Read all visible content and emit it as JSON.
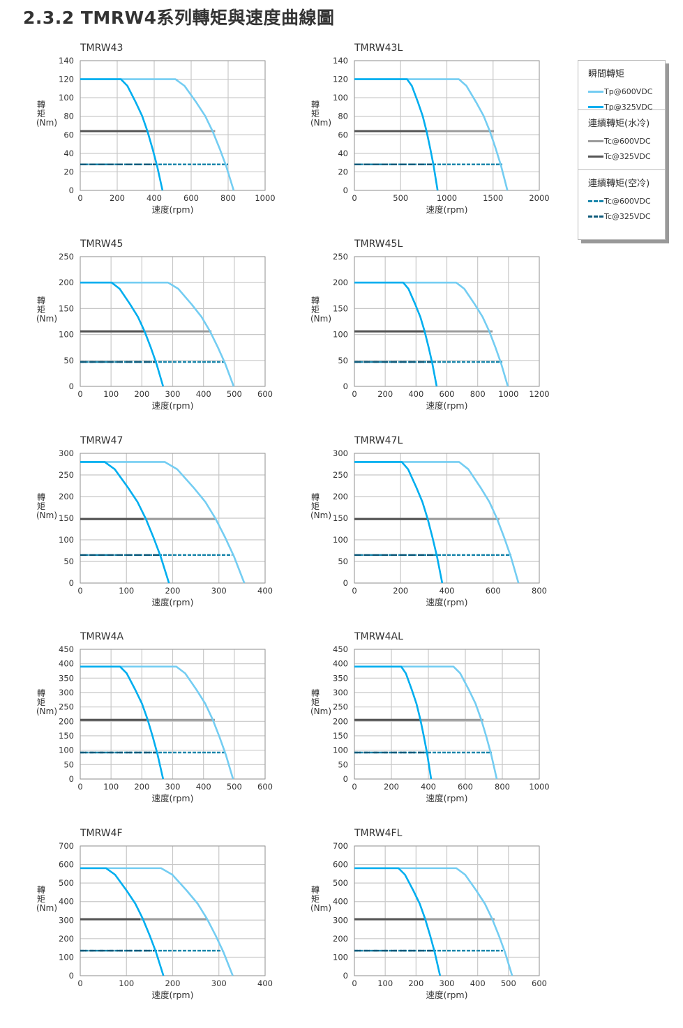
{
  "page_title": "2.3.2  TMRW4系列轉矩與速度曲線圖",
  "legend": {
    "sections": [
      {
        "heading": "瞬間轉矩",
        "items": [
          {
            "label": "Tp@600VDC",
            "color": "#74cdf2",
            "style": "solid"
          },
          {
            "label": "Tp@325VDC",
            "color": "#00aeef",
            "style": "solid"
          }
        ]
      },
      {
        "heading": "連續轉矩(水冷)",
        "items": [
          {
            "label": "Tc@600VDC",
            "color": "#9b9b9b",
            "style": "solid"
          },
          {
            "label": "Tc@325VDC",
            "color": "#555555",
            "style": "solid"
          }
        ]
      },
      {
        "heading": "連續轉矩(空冷)",
        "items": [
          {
            "label": "Tc@600VDC",
            "color": "#1a86ab",
            "style": "dashed"
          },
          {
            "label": "Tc@325VDC",
            "color": "#0e5a7a",
            "style": "longdash"
          }
        ]
      }
    ]
  },
  "chart_data": [
    {
      "type": "line",
      "title": "TMRW43",
      "xlabel": "速度(rpm)",
      "ylabel": "轉矩(Nm)",
      "xlim": [
        0,
        1000
      ],
      "xticks": [
        0,
        200,
        400,
        600,
        800,
        1000
      ],
      "ylim": [
        0,
        140
      ],
      "yticks": [
        0,
        20,
        40,
        60,
        80,
        100,
        120,
        140
      ],
      "grid": true,
      "Tp": 120,
      "tp600": {
        "knee_rpm": 515,
        "zero_rpm": 830
      },
      "tp325": {
        "knee_rpm": 220,
        "zero_rpm": 445
      },
      "tc_water": {
        "torque": 64,
        "end600_rpm": 730,
        "end325_rpm": 365
      },
      "tc_air": {
        "torque": 28,
        "end600_rpm": 800,
        "end325_rpm": 410
      }
    },
    {
      "type": "line",
      "title": "TMRW43L",
      "xlabel": "速度(rpm)",
      "ylabel": "轉矩(Nm)",
      "xlim": [
        0,
        2000
      ],
      "xticks": [
        0,
        500,
        1000,
        1500,
        2000
      ],
      "ylim": [
        0,
        140
      ],
      "yticks": [
        0,
        20,
        40,
        60,
        80,
        100,
        120,
        140
      ],
      "grid": true,
      "Tp": 120,
      "tp600": {
        "knee_rpm": 1130,
        "zero_rpm": 1655
      },
      "tp325": {
        "knee_rpm": 570,
        "zero_rpm": 900
      },
      "tc_water": {
        "torque": 64,
        "end600_rpm": 1510,
        "end325_rpm": 785
      },
      "tc_air": {
        "torque": 28,
        "end600_rpm": 1600,
        "end325_rpm": 840
      }
    },
    {
      "type": "line",
      "title": "TMRW45",
      "xlabel": "速度(rpm)",
      "ylabel": "轉矩(Nm)",
      "xlim": [
        0,
        600
      ],
      "xticks": [
        0,
        100,
        200,
        300,
        400,
        500,
        600
      ],
      "ylim": [
        0,
        250
      ],
      "yticks": [
        0,
        50,
        100,
        150,
        200,
        250
      ],
      "grid": true,
      "Tp": 200,
      "tp600": {
        "knee_rpm": 285,
        "zero_rpm": 498
      },
      "tp325": {
        "knee_rpm": 102,
        "zero_rpm": 269
      },
      "tc_water": {
        "torque": 106,
        "end600_rpm": 426,
        "end325_rpm": 206
      },
      "tc_air": {
        "torque": 47,
        "end600_rpm": 469,
        "end325_rpm": 245
      }
    },
    {
      "type": "line",
      "title": "TMRW45L",
      "xlabel": "速度(rpm)",
      "ylabel": "轉矩(Nm)",
      "xlim": [
        0,
        1200
      ],
      "xticks": [
        0,
        200,
        400,
        600,
        800,
        1000,
        1200
      ],
      "ylim": [
        0,
        250
      ],
      "yticks": [
        0,
        50,
        100,
        150,
        200,
        250
      ],
      "grid": true,
      "Tp": 200,
      "tp600": {
        "knee_rpm": 661,
        "zero_rpm": 996
      },
      "tp325": {
        "knee_rpm": 317,
        "zero_rpm": 534
      },
      "tc_water": {
        "torque": 106,
        "end600_rpm": 897,
        "end325_rpm": 462
      },
      "tc_air": {
        "torque": 47,
        "end600_rpm": 960,
        "end325_rpm": 500
      }
    },
    {
      "type": "line",
      "title": "TMRW47",
      "xlabel": "速度(rpm)",
      "ylabel": "轉矩(Nm)",
      "xlim": [
        0,
        400
      ],
      "xticks": [
        0,
        100,
        200,
        300,
        400
      ],
      "ylim": [
        0,
        300
      ],
      "yticks": [
        0,
        50,
        100,
        150,
        200,
        250,
        300
      ],
      "grid": true,
      "Tp": 280,
      "tp600": {
        "knee_rpm": 183,
        "zero_rpm": 355
      },
      "tp325": {
        "knee_rpm": 53,
        "zero_rpm": 192
      },
      "tc_water": {
        "torque": 148,
        "end600_rpm": 294,
        "end325_rpm": 137
      },
      "tc_air": {
        "torque": 65,
        "end600_rpm": 329,
        "end325_rpm": 172
      }
    },
    {
      "type": "line",
      "title": "TMRW47L",
      "xlabel": "速度(rpm)",
      "ylabel": "轉矩(Nm)",
      "xlim": [
        0,
        800
      ],
      "xticks": [
        0,
        200,
        400,
        600,
        800
      ],
      "ylim": [
        0,
        300
      ],
      "yticks": [
        0,
        50,
        100,
        150,
        200,
        250,
        300
      ],
      "grid": true,
      "Tp": 280,
      "tp600": {
        "knee_rpm": 453,
        "zero_rpm": 710
      },
      "tp325": {
        "knee_rpm": 205,
        "zero_rpm": 380
      },
      "tc_water": {
        "torque": 148,
        "end600_rpm": 628,
        "end325_rpm": 314
      },
      "tc_air": {
        "torque": 65,
        "end600_rpm": 679,
        "end325_rpm": 355
      }
    },
    {
      "type": "line",
      "title": "TMRW4A",
      "xlabel": "速度(rpm)",
      "ylabel": "轉矩(Nm)",
      "xlim": [
        0,
        600
      ],
      "xticks": [
        0,
        100,
        200,
        300,
        400,
        500,
        600
      ],
      "ylim": [
        0,
        450
      ],
      "yticks": [
        0,
        50,
        100,
        150,
        200,
        250,
        300,
        350,
        400,
        450
      ],
      "grid": true,
      "Tp": 390,
      "tp600": {
        "knee_rpm": 312,
        "zero_rpm": 496
      },
      "tp325": {
        "knee_rpm": 129,
        "zero_rpm": 269
      },
      "tc_water": {
        "torque": 205,
        "end600_rpm": 437,
        "end325_rpm": 215
      },
      "tc_air": {
        "torque": 92,
        "end600_rpm": 475,
        "end325_rpm": 248
      }
    },
    {
      "type": "line",
      "title": "TMRW4AL",
      "xlabel": "速度(rpm)",
      "ylabel": "轉矩(Nm)",
      "xlim": [
        0,
        1000
      ],
      "xticks": [
        0,
        200,
        400,
        600,
        800,
        1000
      ],
      "ylim": [
        0,
        450
      ],
      "yticks": [
        0,
        50,
        100,
        150,
        200,
        250,
        300,
        350,
        400,
        450
      ],
      "grid": true,
      "Tp": 390,
      "tp600": {
        "knee_rpm": 536,
        "zero_rpm": 770
      },
      "tp325": {
        "knee_rpm": 253,
        "zero_rpm": 415
      },
      "tc_water": {
        "torque": 205,
        "end600_rpm": 698,
        "end325_rpm": 355
      },
      "tc_air": {
        "torque": 92,
        "end600_rpm": 743,
        "end325_rpm": 392
      }
    },
    {
      "type": "line",
      "title": "TMRW4F",
      "xlabel": "速度(rpm)",
      "ylabel": "轉矩(Nm)",
      "xlim": [
        0,
        400
      ],
      "xticks": [
        0,
        100,
        200,
        300,
        400
      ],
      "ylim": [
        0,
        700
      ],
      "yticks": [
        0,
        100,
        200,
        300,
        400,
        500,
        600,
        700
      ],
      "grid": true,
      "Tp": 580,
      "tp600": {
        "knee_rpm": 175,
        "zero_rpm": 330
      },
      "tp325": {
        "knee_rpm": 56,
        "zero_rpm": 180
      },
      "tc_water": {
        "torque": 305,
        "end600_rpm": 275,
        "end325_rpm": 130
      },
      "tc_air": {
        "torque": 135,
        "end600_rpm": 309,
        "end325_rpm": 160
      }
    },
    {
      "type": "line",
      "title": "TMRW4FL",
      "xlabel": "速度(rpm)",
      "ylabel": "轉矩(Nm)",
      "xlim": [
        0,
        600
      ],
      "xticks": [
        0,
        100,
        200,
        300,
        400,
        500,
        600
      ],
      "ylim": [
        0,
        700
      ],
      "yticks": [
        0,
        100,
        200,
        300,
        400,
        500,
        600,
        700
      ],
      "grid": true,
      "Tp": 580,
      "tp600": {
        "knee_rpm": 331,
        "zero_rpm": 512
      },
      "tp325": {
        "knee_rpm": 143,
        "zero_rpm": 278
      },
      "tc_water": {
        "torque": 305,
        "end600_rpm": 455,
        "end325_rpm": 229
      },
      "tc_air": {
        "torque": 135,
        "end600_rpm": 482,
        "end325_rpm": 255
      }
    }
  ]
}
